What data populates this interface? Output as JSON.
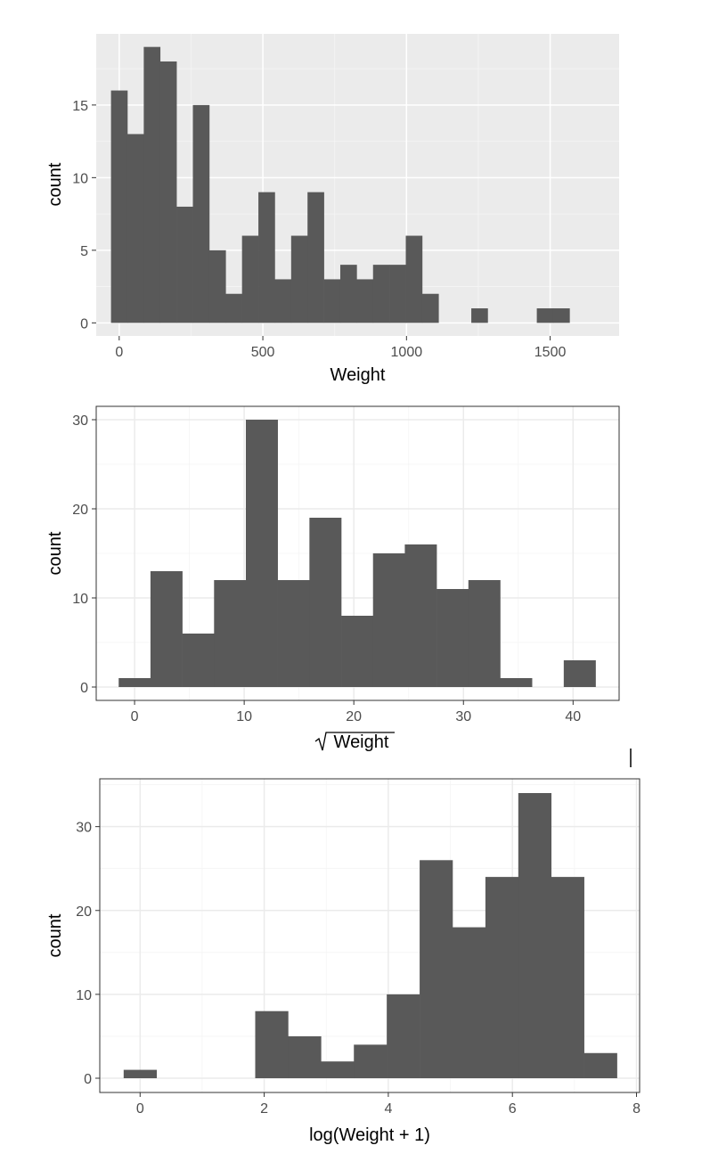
{
  "chart_data": [
    {
      "type": "bar",
      "theme": "gray",
      "xlabel": "Weight",
      "ylabel": "count",
      "xlim": [
        -80,
        1740
      ],
      "ylim": [
        -0.9,
        19.9
      ],
      "xticks": [
        0,
        500,
        1000,
        1500
      ],
      "yticks": [
        0,
        5,
        10,
        15
      ],
      "grid": true,
      "bin_width": 57,
      "bin_start": -28.5,
      "values": [
        16,
        13,
        19,
        18,
        8,
        15,
        5,
        2,
        6,
        9,
        3,
        6,
        9,
        3,
        4,
        3,
        4,
        4,
        6,
        2,
        0,
        0,
        1,
        0,
        0,
        0,
        1,
        1
      ]
    },
    {
      "type": "bar",
      "theme": "bw",
      "xlabel": "Weight",
      "xlabel_sqrt": true,
      "ylabel": "count",
      "xlim": [
        -3.5,
        44.2
      ],
      "ylim": [
        -1.5,
        31.5
      ],
      "xticks": [
        0,
        10,
        20,
        30,
        40
      ],
      "yticks": [
        0,
        10,
        20,
        30
      ],
      "grid": true,
      "bin_width": 2.9,
      "bin_start": -1.45,
      "values": [
        1,
        13,
        6,
        12,
        30,
        12,
        19,
        8,
        15,
        16,
        11,
        12,
        1,
        0,
        3
      ]
    },
    {
      "type": "bar",
      "theme": "bw",
      "xlabel": "log(Weight + 1)",
      "ylabel": "count",
      "xlim": [
        -0.65,
        8.05
      ],
      "ylim": [
        -1.7,
        35.7
      ],
      "xticks": [
        0,
        2,
        4,
        6,
        8
      ],
      "yticks": [
        0,
        10,
        20,
        30
      ],
      "grid": true,
      "bin_width": 0.53,
      "bin_start": -0.265,
      "values": [
        1,
        0,
        0,
        0,
        8,
        5,
        2,
        4,
        10,
        26,
        18,
        24,
        34,
        24,
        3
      ]
    }
  ]
}
